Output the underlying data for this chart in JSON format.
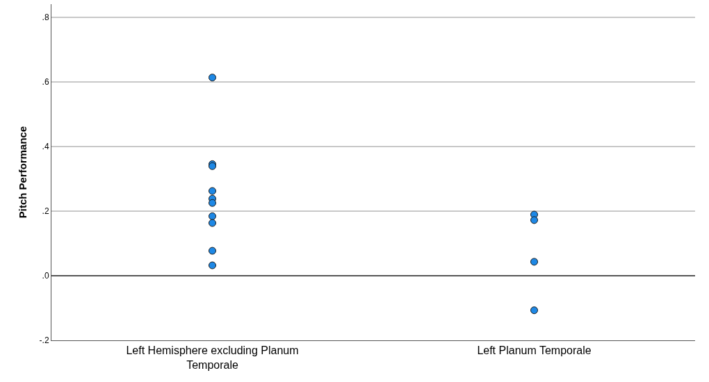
{
  "chart_data": {
    "type": "scatter",
    "ylabel": "Pitch Performance",
    "categories": [
      "Left Hemisphere excluding Planum Temporale",
      "Left Planum Temporale"
    ],
    "series": [
      {
        "color": "#1e88e5",
        "x": [
          "Left Hemisphere excluding Planum Temporale",
          "Left Hemisphere excluding Planum Temporale",
          "Left Hemisphere excluding Planum Temporale",
          "Left Hemisphere excluding Planum Temporale",
          "Left Hemisphere excluding Planum Temporale",
          "Left Hemisphere excluding Planum Temporale",
          "Left Hemisphere excluding Planum Temporale",
          "Left Hemisphere excluding Planum Temporale",
          "Left Hemisphere excluding Planum Temporale",
          "Left Hemisphere excluding Planum Temporale",
          "Left Planum Temporale",
          "Left Planum Temporale",
          "Left Planum Temporale",
          "Left Planum Temporale"
        ],
        "values": [
          0.613,
          0.345,
          0.339,
          0.262,
          0.238,
          0.225,
          0.184,
          0.163,
          0.077,
          0.032,
          0.189,
          0.172,
          0.043,
          -0.107
        ]
      }
    ],
    "ylim": [
      -0.2,
      0.84
    ],
    "yticks": [
      {
        "value": -0.2,
        "label": "-.2"
      },
      {
        "value": 0,
        "label": ".0"
      },
      {
        "value": 0.2,
        "label": ".2"
      },
      {
        "value": 0.4,
        "label": ".4"
      },
      {
        "value": 0.6,
        "label": ".6"
      },
      {
        "value": 0.8,
        "label": ".8"
      }
    ],
    "grid": "y",
    "marker": "circle",
    "ref_lines": [
      {
        "axis": "y",
        "value": 0,
        "color": "#555555"
      }
    ]
  }
}
